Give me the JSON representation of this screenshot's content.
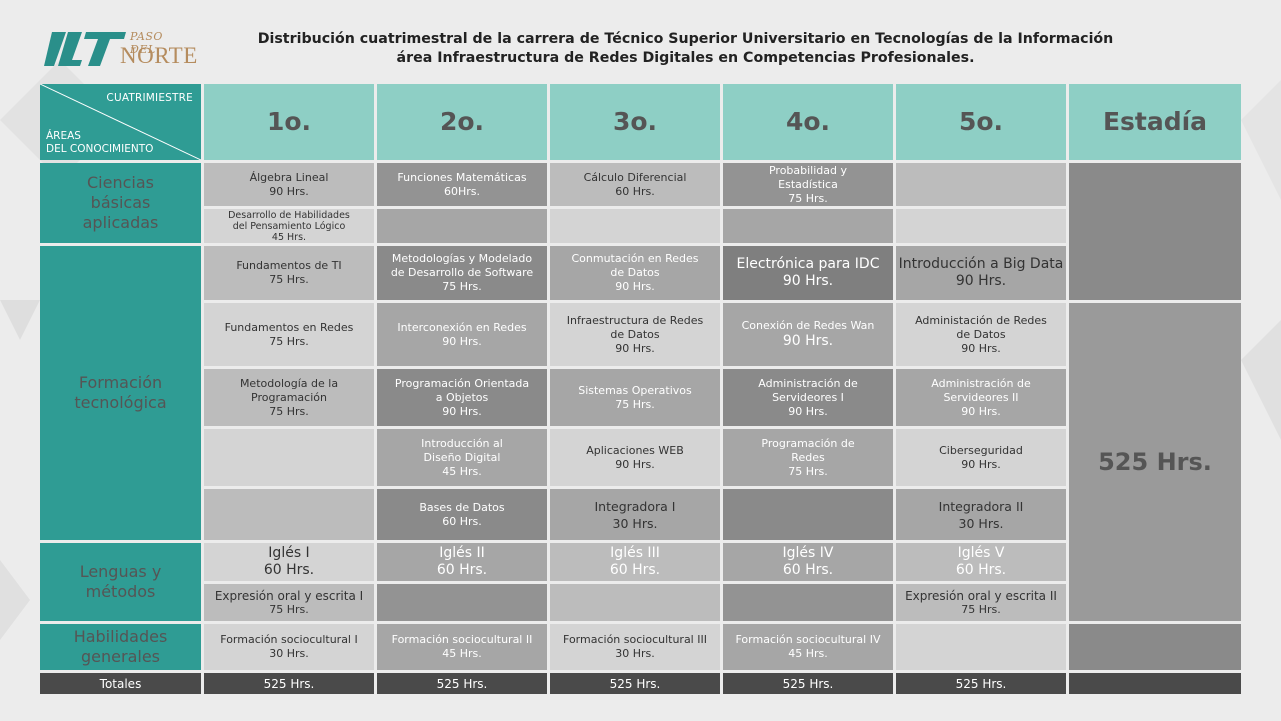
{
  "logo": {
    "line1": "PASO DEL",
    "line2": "NORTE"
  },
  "title": {
    "line1": "Distribución cuatrimestral de la carrera de Técnico Superior Universitario en Tecnologías de la Información",
    "line2": "área Infraestructura de Redes Digitales en Competencias Profesionales."
  },
  "corner": {
    "top": "CUATRIMIESTRE",
    "bottom1": "ÁREAS",
    "bottom2": "DEL CONOCIMIENTO"
  },
  "periods": [
    "1o.",
    "2o.",
    "3o.",
    "4o.",
    "5o.",
    "Estadía"
  ],
  "areas": {
    "ciencias": [
      "Ciencias",
      "básicas",
      "aplicadas"
    ],
    "formacion": [
      "Formación",
      "tecnológica"
    ],
    "lenguas": [
      "Lenguas y",
      "métodos"
    ],
    "habilidades": [
      "Habilidades",
      "generales"
    ]
  },
  "cells": {
    "r1c1": [
      "Álgebra Lineal",
      "90 Hrs."
    ],
    "r1c2": [
      "Funciones Matemáticas",
      "60Hrs."
    ],
    "r1c3": [
      "Cálculo Diferencial",
      "60 Hrs."
    ],
    "r1c4": [
      "Probabilidad y",
      "Estadística",
      "75 Hrs."
    ],
    "r2c1": [
      "Desarrollo de Habilidades",
      "del Pensamiento Lógico",
      "45 Hrs."
    ],
    "r3c1": [
      "Fundamentos de TI",
      "75 Hrs."
    ],
    "r3c2": [
      "Metodologías y Modelado",
      "de Desarrollo de Software",
      "75 Hrs."
    ],
    "r3c3": [
      "Conmutación en Redes",
      "de Datos",
      "90 Hrs."
    ],
    "r3c4": [
      "Electrónica para IDC",
      "90 Hrs."
    ],
    "r3c5": [
      "Introducción a Big Data",
      "90 Hrs."
    ],
    "r4c1": [
      "Fundamentos en Redes",
      "75 Hrs."
    ],
    "r4c2": [
      "Interconexión en Redes",
      "90 Hrs."
    ],
    "r4c3": [
      "Infraestructura de Redes",
      "de Datos",
      "90 Hrs."
    ],
    "r4c4": [
      "Conexión de Redes Wan",
      "90 Hrs."
    ],
    "r4c5": [
      "Administación de Redes",
      "de Datos",
      "90 Hrs."
    ],
    "r5c1": [
      "Metodología de la",
      "Programación",
      "75 Hrs."
    ],
    "r5c2": [
      "Programación Orientada",
      "a Objetos",
      "90 Hrs."
    ],
    "r5c3": [
      "Sistemas Operativos",
      "75 Hrs."
    ],
    "r5c4": [
      "Administración de",
      "Servideores I",
      "90 Hrs."
    ],
    "r5c5": [
      "Administración de",
      "Servideores II",
      "90 Hrs."
    ],
    "r6c2": [
      "Introducción al",
      "Diseño Digital",
      "45 Hrs."
    ],
    "r6c3": [
      "Aplicaciones WEB",
      "90 Hrs."
    ],
    "r6c4": [
      "Programación de",
      "Redes",
      "75 Hrs."
    ],
    "r6c5": [
      "Ciberseguridad",
      "90 Hrs."
    ],
    "r7c2": [
      "Bases de Datos",
      "60 Hrs."
    ],
    "r7c3": [
      "Integradora I",
      "30 Hrs."
    ],
    "r7c5": [
      "Integradora II",
      "30 Hrs."
    ],
    "r8c1": [
      "Iglés I",
      "60 Hrs."
    ],
    "r8c2": [
      "Iglés II",
      "60 Hrs."
    ],
    "r8c3": [
      "Iglés III",
      "60 Hrs."
    ],
    "r8c4": [
      "Iglés IV",
      "60 Hrs."
    ],
    "r8c5": [
      "Iglés V",
      "60 Hrs."
    ],
    "r9c1": [
      "Expresión oral y escrita I",
      "75 Hrs."
    ],
    "r9c5": [
      "Expresión oral y escrita II",
      "75 Hrs."
    ],
    "r10c1": [
      "Formación sociocultural I",
      "30 Hrs."
    ],
    "r10c2": [
      "Formación sociocultural II",
      "45 Hrs."
    ],
    "r10c3": [
      "Formación sociocultural III",
      "30 Hrs."
    ],
    "r10c4": [
      "Formación sociocultural IV",
      "45 Hrs."
    ]
  },
  "estadia_hours": "525 Hrs.",
  "totals": {
    "label": "Totales",
    "values": [
      "525 Hrs.",
      "525 Hrs.",
      "525 Hrs.",
      "525 Hrs.",
      "525 Hrs."
    ]
  }
}
